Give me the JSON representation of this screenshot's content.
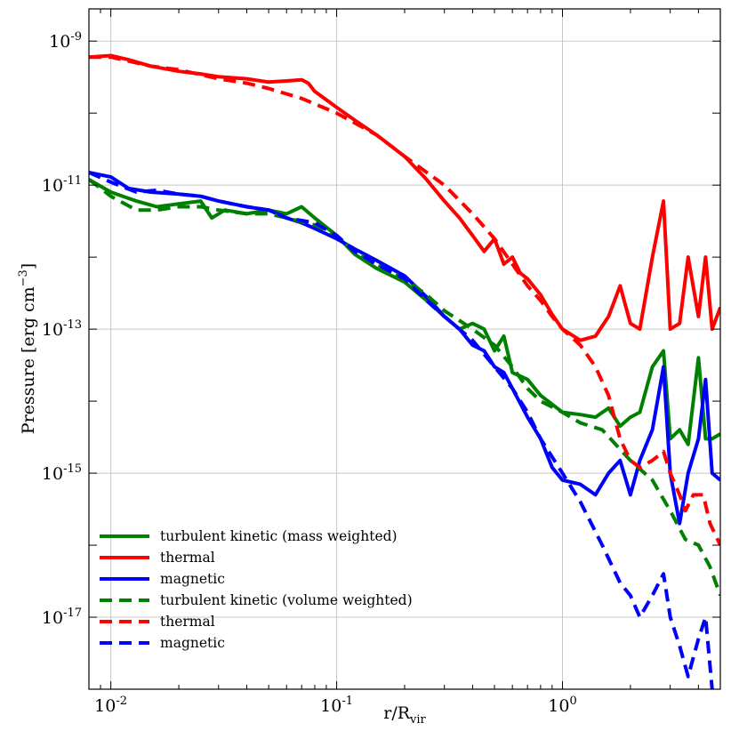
{
  "chart_data": {
    "type": "line",
    "xlabel": "r/R",
    "xlabel_sub": "vir",
    "ylabel": "Pressure [erg cm",
    "ylabel_sup": "−3",
    "ylabel_end": "]",
    "x_scale": "log",
    "y_scale": "log",
    "xlim": [
      0.008,
      5.0
    ],
    "ylim": [
      1e-18,
      2.8e-09
    ],
    "grid": true,
    "legend_position": "bottom-left",
    "x_ticks": [
      {
        "value": 0.01,
        "base": "10",
        "exp": "-2"
      },
      {
        "value": 0.1,
        "base": "10",
        "exp": "-1"
      },
      {
        "value": 1.0,
        "base": "10",
        "exp": "0"
      }
    ],
    "y_ticks": [
      {
        "value": 1e-17,
        "base": "10",
        "exp": "-17"
      },
      {
        "value": 1e-15,
        "base": "10",
        "exp": "-15"
      },
      {
        "value": 1e-13,
        "base": "10",
        "exp": "-13"
      },
      {
        "value": 1e-11,
        "base": "10",
        "exp": "-11"
      },
      {
        "value": 1e-09,
        "base": "10",
        "exp": "-9"
      }
    ],
    "series": [
      {
        "name": "turbulent kinetic (mass weighted)",
        "color": "#008000",
        "dash": "solid",
        "x": [
          0.008,
          0.01,
          0.013,
          0.016,
          0.02,
          0.025,
          0.028,
          0.032,
          0.04,
          0.05,
          0.06,
          0.07,
          0.08,
          0.1,
          0.12,
          0.15,
          0.2,
          0.25,
          0.3,
          0.35,
          0.4,
          0.45,
          0.5,
          0.55,
          0.6,
          0.7,
          0.8,
          1.0,
          1.2,
          1.4,
          1.6,
          1.8,
          2.0,
          2.2,
          2.5,
          2.8,
          3.0,
          3.3,
          3.6,
          4.0,
          4.3,
          4.6,
          5.0
        ],
        "y": [
          1.2e-11,
          8e-12,
          6e-12,
          5e-12,
          5.5e-12,
          6e-12,
          3.5e-12,
          4.5e-12,
          4e-12,
          4.5e-12,
          4e-12,
          5e-12,
          3.5e-12,
          2e-12,
          1.1e-12,
          7e-13,
          4.5e-13,
          2.5e-13,
          1.5e-13,
          1e-13,
          1.2e-13,
          1e-13,
          5e-14,
          8e-14,
          2.5e-14,
          2e-14,
          1.2e-14,
          7e-15,
          6.5e-15,
          6e-15,
          8e-15,
          4.5e-15,
          6e-15,
          7e-15,
          3e-14,
          5e-14,
          3e-15,
          4e-15,
          2.5e-15,
          4e-14,
          3e-15,
          3e-15,
          3.5e-15
        ]
      },
      {
        "name": "thermal",
        "color": "#ff0000",
        "dash": "solid",
        "x": [
          0.008,
          0.01,
          0.012,
          0.015,
          0.02,
          0.025,
          0.03,
          0.04,
          0.05,
          0.06,
          0.07,
          0.075,
          0.08,
          0.1,
          0.12,
          0.15,
          0.2,
          0.25,
          0.3,
          0.35,
          0.4,
          0.45,
          0.5,
          0.55,
          0.6,
          0.65,
          0.7,
          0.8,
          0.9,
          1.0,
          1.2,
          1.4,
          1.6,
          1.8,
          2.0,
          2.2,
          2.5,
          2.8,
          3.0,
          3.3,
          3.6,
          4.0,
          4.3,
          4.6,
          5.0
        ],
        "y": [
          6e-10,
          6.3e-10,
          5.5e-10,
          4.5e-10,
          3.8e-10,
          3.5e-10,
          3.2e-10,
          3e-10,
          2.7e-10,
          2.8e-10,
          2.9e-10,
          2.6e-10,
          2e-10,
          1.2e-10,
          8e-11,
          5e-11,
          2.5e-11,
          1.2e-11,
          6e-12,
          3.5e-12,
          2e-12,
          1.2e-12,
          1.8e-12,
          8e-13,
          1e-12,
          6e-13,
          5e-13,
          3e-13,
          1.6e-13,
          1e-13,
          7e-14,
          8e-14,
          1.5e-13,
          4e-13,
          1.2e-13,
          1e-13,
          1e-12,
          6e-12,
          1e-13,
          1.2e-13,
          1e-12,
          1.5e-13,
          1e-12,
          1e-13,
          2e-13
        ]
      },
      {
        "name": "magnetic",
        "color": "#0000ff",
        "dash": "solid",
        "x": [
          0.008,
          0.01,
          0.012,
          0.015,
          0.02,
          0.025,
          0.03,
          0.04,
          0.05,
          0.06,
          0.07,
          0.08,
          0.1,
          0.12,
          0.15,
          0.2,
          0.25,
          0.3,
          0.35,
          0.4,
          0.45,
          0.5,
          0.55,
          0.6,
          0.7,
          0.8,
          0.9,
          1.0,
          1.2,
          1.4,
          1.6,
          1.8,
          2.0,
          2.2,
          2.5,
          2.8,
          3.0,
          3.3,
          3.6,
          4.0,
          4.3,
          4.6,
          5.0
        ],
        "y": [
          1.5e-11,
          1.3e-11,
          9e-12,
          8e-12,
          7.5e-12,
          7e-12,
          6e-12,
          5e-12,
          4.5e-12,
          3.5e-12,
          3e-12,
          2.5e-12,
          1.8e-12,
          1.3e-12,
          9e-13,
          5.5e-13,
          2.8e-13,
          1.5e-13,
          1e-13,
          6e-14,
          5e-14,
          3e-14,
          2.5e-14,
          1.5e-14,
          6e-15,
          3e-15,
          1.2e-15,
          8e-16,
          7e-16,
          5e-16,
          1e-15,
          1.5e-15,
          5e-16,
          1.5e-15,
          4e-15,
          3e-14,
          1e-15,
          2e-16,
          1e-15,
          3e-15,
          2e-14,
          1e-15,
          8e-16
        ]
      },
      {
        "name": "turbulent kinetic (volume weighted)",
        "color": "#008000",
        "dash": "dashed",
        "x": [
          0.008,
          0.01,
          0.013,
          0.016,
          0.02,
          0.025,
          0.03,
          0.04,
          0.05,
          0.06,
          0.08,
          0.1,
          0.12,
          0.15,
          0.2,
          0.25,
          0.3,
          0.4,
          0.5,
          0.6,
          0.7,
          0.8,
          1.0,
          1.2,
          1.5,
          2.0,
          2.5,
          3.0,
          3.5,
          4.0,
          4.5,
          5.0
        ],
        "y": [
          1.2e-11,
          7e-12,
          4.5e-12,
          4.5e-12,
          5e-12,
          5e-12,
          4.5e-12,
          4e-12,
          4e-12,
          3.5e-12,
          2.8e-12,
          2e-12,
          1.2e-12,
          8e-13,
          5e-13,
          3e-13,
          1.8e-13,
          1e-13,
          6e-14,
          3e-14,
          1.5e-14,
          1e-14,
          7e-15,
          5e-15,
          4e-15,
          1.5e-15,
          8e-16,
          3e-16,
          1.2e-16,
          1e-16,
          5e-17,
          2e-17
        ]
      },
      {
        "name": "thermal",
        "color": "#ff0000",
        "dash": "dashed",
        "x": [
          0.008,
          0.01,
          0.015,
          0.02,
          0.03,
          0.04,
          0.05,
          0.07,
          0.1,
          0.15,
          0.2,
          0.3,
          0.4,
          0.5,
          0.6,
          0.7,
          0.8,
          0.9,
          1.0,
          1.2,
          1.4,
          1.6,
          1.8,
          2.0,
          2.2,
          2.5,
          2.8,
          3.0,
          3.3,
          3.5,
          3.8,
          4.2,
          4.5,
          5.0
        ],
        "y": [
          6e-10,
          6e-10,
          4.5e-10,
          4e-10,
          3e-10,
          2.6e-10,
          2.2e-10,
          1.6e-10,
          1e-10,
          5e-11,
          2.5e-11,
          1e-11,
          4e-12,
          1.8e-12,
          8e-13,
          4e-13,
          2.5e-13,
          1.5e-13,
          1e-13,
          6e-14,
          3e-14,
          1.2e-14,
          3e-15,
          1.5e-15,
          1.2e-15,
          1.5e-15,
          2e-15,
          1e-15,
          5e-16,
          3e-16,
          5e-16,
          5e-16,
          2e-16,
          1e-16
        ]
      },
      {
        "name": "magnetic",
        "color": "#0000ff",
        "dash": "dashed",
        "x": [
          0.008,
          0.01,
          0.013,
          0.016,
          0.02,
          0.025,
          0.03,
          0.04,
          0.05,
          0.06,
          0.08,
          0.1,
          0.12,
          0.15,
          0.2,
          0.25,
          0.3,
          0.4,
          0.5,
          0.6,
          0.7,
          0.8,
          1.0,
          1.2,
          1.5,
          1.8,
          2.0,
          2.2,
          2.5,
          2.8,
          3.0,
          3.3,
          3.6,
          4.0,
          4.3,
          4.6,
          5.0
        ],
        "y": [
          1.5e-11,
          1.1e-11,
          8e-12,
          8.5e-12,
          7.5e-12,
          7e-12,
          6e-12,
          5e-12,
          4.5e-12,
          3.5e-12,
          3e-12,
          2e-12,
          1.2e-12,
          8e-13,
          5e-13,
          2.5e-13,
          1.5e-13,
          7e-14,
          3e-14,
          1.5e-14,
          7e-15,
          3e-15,
          1e-15,
          4e-16,
          1e-16,
          3e-17,
          2e-17,
          1e-17,
          2e-17,
          4e-17,
          1e-17,
          4e-18,
          1.5e-18,
          5e-18,
          1e-17,
          1e-18,
          1.2e-19
        ]
      }
    ]
  }
}
